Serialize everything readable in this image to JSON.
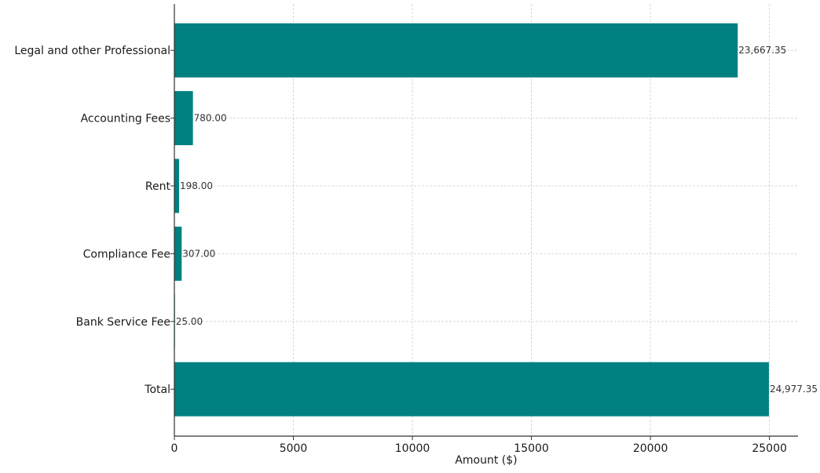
{
  "chart_data": {
    "type": "bar",
    "orientation": "horizontal",
    "categories": [
      "Legal and other Professional",
      "Accounting Fees",
      "Rent",
      "Compliance Fee",
      "Bank Service Fee",
      "Total"
    ],
    "values": [
      23667.35,
      780.0,
      198.0,
      307.0,
      25.0,
      24977.35
    ],
    "value_labels": [
      "23,667.35",
      "780.00",
      "198.00",
      "307.00",
      "25.00",
      "24,977.35"
    ],
    "title": "",
    "xlabel": "Amount ($)",
    "ylabel": "",
    "xlim": [
      0,
      26200
    ],
    "xticks": [
      0,
      5000,
      10000,
      15000,
      20000,
      25000
    ],
    "xtick_labels": [
      "0",
      "5000",
      "10000",
      "15000",
      "20000",
      "25000"
    ],
    "grid": true,
    "bar_color": "#008080"
  }
}
